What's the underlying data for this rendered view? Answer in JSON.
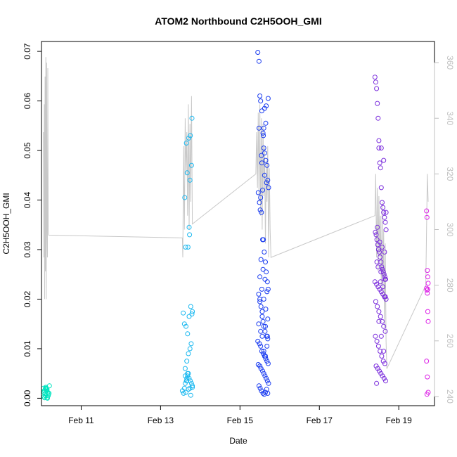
{
  "chart_data": {
    "type": "scatter",
    "title": "ATOM2 Northbound C2H5OOH_GMI",
    "xlabel": "Date",
    "ylabel": "C2H5OOH_GMI",
    "y2label": "",
    "xlim": [
      10.0,
      19.9
    ],
    "ylim": [
      -0.0015,
      0.072
    ],
    "y2lim": [
      236.7,
      367.6
    ],
    "x_ticks": [
      {
        "value": 11,
        "label": "Feb 11"
      },
      {
        "value": 13,
        "label": "Feb 13"
      },
      {
        "value": 15,
        "label": "Feb 15"
      },
      {
        "value": 17,
        "label": "Feb 17"
      },
      {
        "value": 19,
        "label": "Feb 19"
      }
    ],
    "y_ticks": [
      "0.00",
      "0.01",
      "0.02",
      "0.03",
      "0.04",
      "0.05",
      "0.06",
      "0.07"
    ],
    "y2_ticks": [
      "240",
      "260",
      "280",
      "300",
      "320",
      "340",
      "360"
    ],
    "grid": false,
    "legend": "none",
    "colors": {
      "line": "#c8c8c8",
      "right_axis": "#c0c0c0",
      "axis": "#000000"
    },
    "series": [
      {
        "color": "#00e5c0",
        "x": [
          10.05,
          10.07,
          10.09,
          10.1,
          10.12,
          10.14,
          10.16,
          10.18,
          10.2,
          10.06,
          10.08,
          10.11,
          10.13,
          10.15,
          10.17,
          10.19,
          10.1,
          10.14,
          10.06,
          10.12
        ],
        "y": [
          0.002,
          0.0015,
          0.001,
          0.0005,
          0.002,
          0.0018,
          0.0012,
          0.0008,
          0.0025,
          0.0003,
          0.0001,
          0.0022,
          0.0015,
          0.0,
          0.0005,
          0.001,
          0.002,
          0.0001,
          0.0012,
          0.0018
        ]
      },
      {
        "color": "#1ab8f0",
        "x": [
          13.55,
          13.6,
          13.62,
          13.65,
          13.66,
          13.68,
          13.7,
          13.72,
          13.75,
          13.78,
          13.8,
          13.62,
          13.66,
          13.7,
          13.74,
          13.77,
          13.79,
          13.6,
          13.64,
          13.68,
          13.72,
          13.76,
          13.8,
          13.57,
          13.63,
          13.69,
          13.73,
          13.78,
          13.61,
          13.67,
          13.71,
          13.75,
          13.79,
          13.65,
          13.74,
          13.58,
          13.64,
          13.7,
          13.76,
          13.8,
          13.62,
          13.68,
          13.74,
          13.66,
          13.72
        ],
        "y": [
          0.0015,
          0.002,
          0.003,
          0.0035,
          0.004,
          0.0045,
          0.005,
          0.004,
          0.0035,
          0.003,
          0.0025,
          0.006,
          0.0075,
          0.009,
          0.01,
          0.011,
          0.017,
          0.015,
          0.0145,
          0.013,
          0.0165,
          0.0185,
          0.0175,
          0.0172,
          0.0305,
          0.0305,
          0.033,
          0.047,
          0.0405,
          0.0455,
          0.0525,
          0.053,
          0.0565,
          0.0515,
          0.044,
          0.001,
          0.0012,
          0.0018,
          0.0006,
          0.0022,
          0.0045,
          0.005,
          0.002,
          0.0035,
          0.0345
        ]
      },
      {
        "color": "#1a3cf0",
        "x": [
          15.45,
          15.48,
          15.5,
          15.52,
          15.55,
          15.58,
          15.6,
          15.62,
          15.65,
          15.68,
          15.7,
          15.72,
          15.46,
          15.49,
          15.51,
          15.54,
          15.57,
          15.59,
          15.61,
          15.64,
          15.66,
          15.69,
          15.71,
          15.47,
          15.5,
          15.53,
          15.56,
          15.58,
          15.6,
          15.63,
          15.67,
          15.7,
          15.45,
          15.49,
          15.52,
          15.55,
          15.59,
          15.62,
          15.65,
          15.68,
          15.71,
          15.46,
          15.5,
          15.53,
          15.57,
          15.6,
          15.63,
          15.66,
          15.69,
          15.72,
          15.48,
          15.51,
          15.54,
          15.58,
          15.61,
          15.64,
          15.67,
          15.7,
          15.47,
          15.52,
          15.56,
          15.6,
          15.64,
          15.68,
          15.5,
          15.55,
          15.6,
          15.65,
          15.7,
          15.53,
          15.58,
          15.63,
          15.68,
          15.52,
          15.57,
          15.62,
          15.67,
          15.55,
          15.6,
          15.65,
          15.48,
          15.54,
          15.59,
          15.66,
          15.71,
          15.62,
          15.5,
          15.56,
          15.64,
          15.69
        ],
        "y": [
          0.0698,
          0.068,
          0.061,
          0.06,
          0.058,
          0.0535,
          0.0545,
          0.0495,
          0.048,
          0.047,
          0.044,
          0.0425,
          0.0415,
          0.0395,
          0.038,
          0.0375,
          0.032,
          0.032,
          0.0295,
          0.0275,
          0.0255,
          0.0235,
          0.022,
          0.021,
          0.02,
          0.0185,
          0.0165,
          0.0155,
          0.0145,
          0.0135,
          0.0125,
          0.012,
          0.0115,
          0.011,
          0.0105,
          0.0095,
          0.009,
          0.0085,
          0.008,
          0.0075,
          0.007,
          0.0068,
          0.0065,
          0.006,
          0.0055,
          0.005,
          0.0045,
          0.004,
          0.0035,
          0.003,
          0.0025,
          0.002,
          0.0015,
          0.001,
          0.0008,
          0.0012,
          0.0018,
          0.001,
          0.015,
          0.0135,
          0.0125,
          0.0095,
          0.0085,
          0.0105,
          0.0245,
          0.022,
          0.02,
          0.018,
          0.016,
          0.028,
          0.026,
          0.024,
          0.0215,
          0.0405,
          0.042,
          0.045,
          0.0435,
          0.0475,
          0.0505,
          0.0555,
          0.0545,
          0.049,
          0.053,
          0.059,
          0.0605,
          0.0585,
          0.0195,
          0.0175,
          0.0145,
          0.0125
        ]
      },
      {
        "color": "#7a2cdc",
        "x": [
          18.4,
          18.42,
          18.44,
          18.46,
          18.48,
          18.5,
          18.52,
          18.54,
          18.56,
          18.58,
          18.6,
          18.62,
          18.64,
          18.66,
          18.68,
          18.41,
          18.43,
          18.45,
          18.47,
          18.49,
          18.51,
          18.53,
          18.55,
          18.57,
          18.59,
          18.61,
          18.63,
          18.65,
          18.67,
          18.4,
          18.44,
          18.48,
          18.52,
          18.56,
          18.6,
          18.64,
          18.68,
          18.42,
          18.46,
          18.5,
          18.54,
          18.58,
          18.62,
          18.66,
          18.41,
          18.45,
          18.49,
          18.53,
          18.57,
          18.61,
          18.65,
          18.43,
          18.47,
          18.51,
          18.55,
          18.59,
          18.63,
          18.67,
          18.44,
          18.5,
          18.56,
          18.62,
          18.68,
          18.46,
          18.52,
          18.58,
          18.64,
          18.48,
          18.54,
          18.6,
          18.66,
          18.5,
          18.56,
          18.62,
          18.45,
          18.55,
          18.65
        ],
        "y": [
          0.0648,
          0.0638,
          0.0625,
          0.0595,
          0.0565,
          0.0505,
          0.0475,
          0.0465,
          0.0425,
          0.0395,
          0.0385,
          0.0375,
          0.0365,
          0.0355,
          0.034,
          0.0335,
          0.033,
          0.032,
          0.031,
          0.03,
          0.0295,
          0.0285,
          0.0275,
          0.0265,
          0.026,
          0.0255,
          0.025,
          0.0245,
          0.024,
          0.0235,
          0.023,
          0.0225,
          0.022,
          0.0215,
          0.021,
          0.0205,
          0.02,
          0.0195,
          0.0185,
          0.0175,
          0.0165,
          0.0155,
          0.0145,
          0.0135,
          0.0125,
          0.0115,
          0.0105,
          0.0095,
          0.0085,
          0.0075,
          0.007,
          0.0065,
          0.006,
          0.0055,
          0.005,
          0.0045,
          0.004,
          0.0035,
          0.003,
          0.052,
          0.0505,
          0.048,
          0.0375,
          0.0345,
          0.0315,
          0.0305,
          0.0295,
          0.0265,
          0.0235,
          0.0225,
          0.0205,
          0.0155,
          0.0125,
          0.0095,
          0.0275,
          0.0255,
          0.024
        ]
      },
      {
        "color": "#dc22e6",
        "x": [
          19.7,
          19.71,
          19.72,
          19.73,
          19.74,
          19.7,
          19.71,
          19.72,
          19.73,
          19.74,
          19.7,
          19.72,
          19.74,
          19.71,
          19.73
        ],
        "y": [
          0.0378,
          0.0365,
          0.0258,
          0.0245,
          0.0232,
          0.0222,
          0.0218,
          0.0212,
          0.0175,
          0.0155,
          0.0075,
          0.0043,
          0.0012,
          0.0008,
          0.022
        ]
      }
    ],
    "line_series": {
      "axis": "right",
      "x": [
        10.05,
        10.06,
        10.07,
        10.08,
        10.09,
        10.1,
        10.11,
        10.12,
        10.13,
        10.14,
        10.15,
        10.16,
        10.17,
        10.18,
        13.55,
        13.56,
        13.58,
        13.6,
        13.62,
        13.64,
        13.66,
        13.68,
        13.7,
        13.72,
        13.74,
        13.76,
        13.78,
        13.8,
        15.4,
        15.42,
        15.44,
        15.46,
        15.48,
        15.5,
        15.52,
        15.54,
        15.56,
        15.58,
        15.6,
        15.62,
        15.64,
        15.66,
        15.68,
        15.7,
        15.72,
        15.74,
        15.76,
        15.78,
        18.4,
        18.42,
        18.44,
        18.46,
        18.48,
        18.5,
        18.52,
        18.54,
        18.56,
        18.58,
        18.6,
        18.62,
        18.64,
        18.66,
        18.68,
        18.7,
        19.68,
        19.7,
        19.72,
        19.74
      ],
      "y": [
        335,
        290,
        345,
        275,
        355,
        285,
        362,
        275,
        360,
        300,
        290,
        358,
        300,
        298,
        297,
        290,
        330,
        300,
        340,
        320,
        335,
        305,
        345,
        300,
        338,
        310,
        348,
        302,
        320,
        335,
        315,
        342,
        310,
        345,
        305,
        340,
        300,
        338,
        312,
        330,
        295,
        325,
        310,
        330,
        290,
        322,
        300,
        290,
        305,
        320,
        290,
        315,
        285,
        312,
        290,
        305,
        280,
        310,
        275,
        300,
        265,
        295,
        260,
        250,
        280,
        300,
        320,
        310
      ]
    }
  }
}
